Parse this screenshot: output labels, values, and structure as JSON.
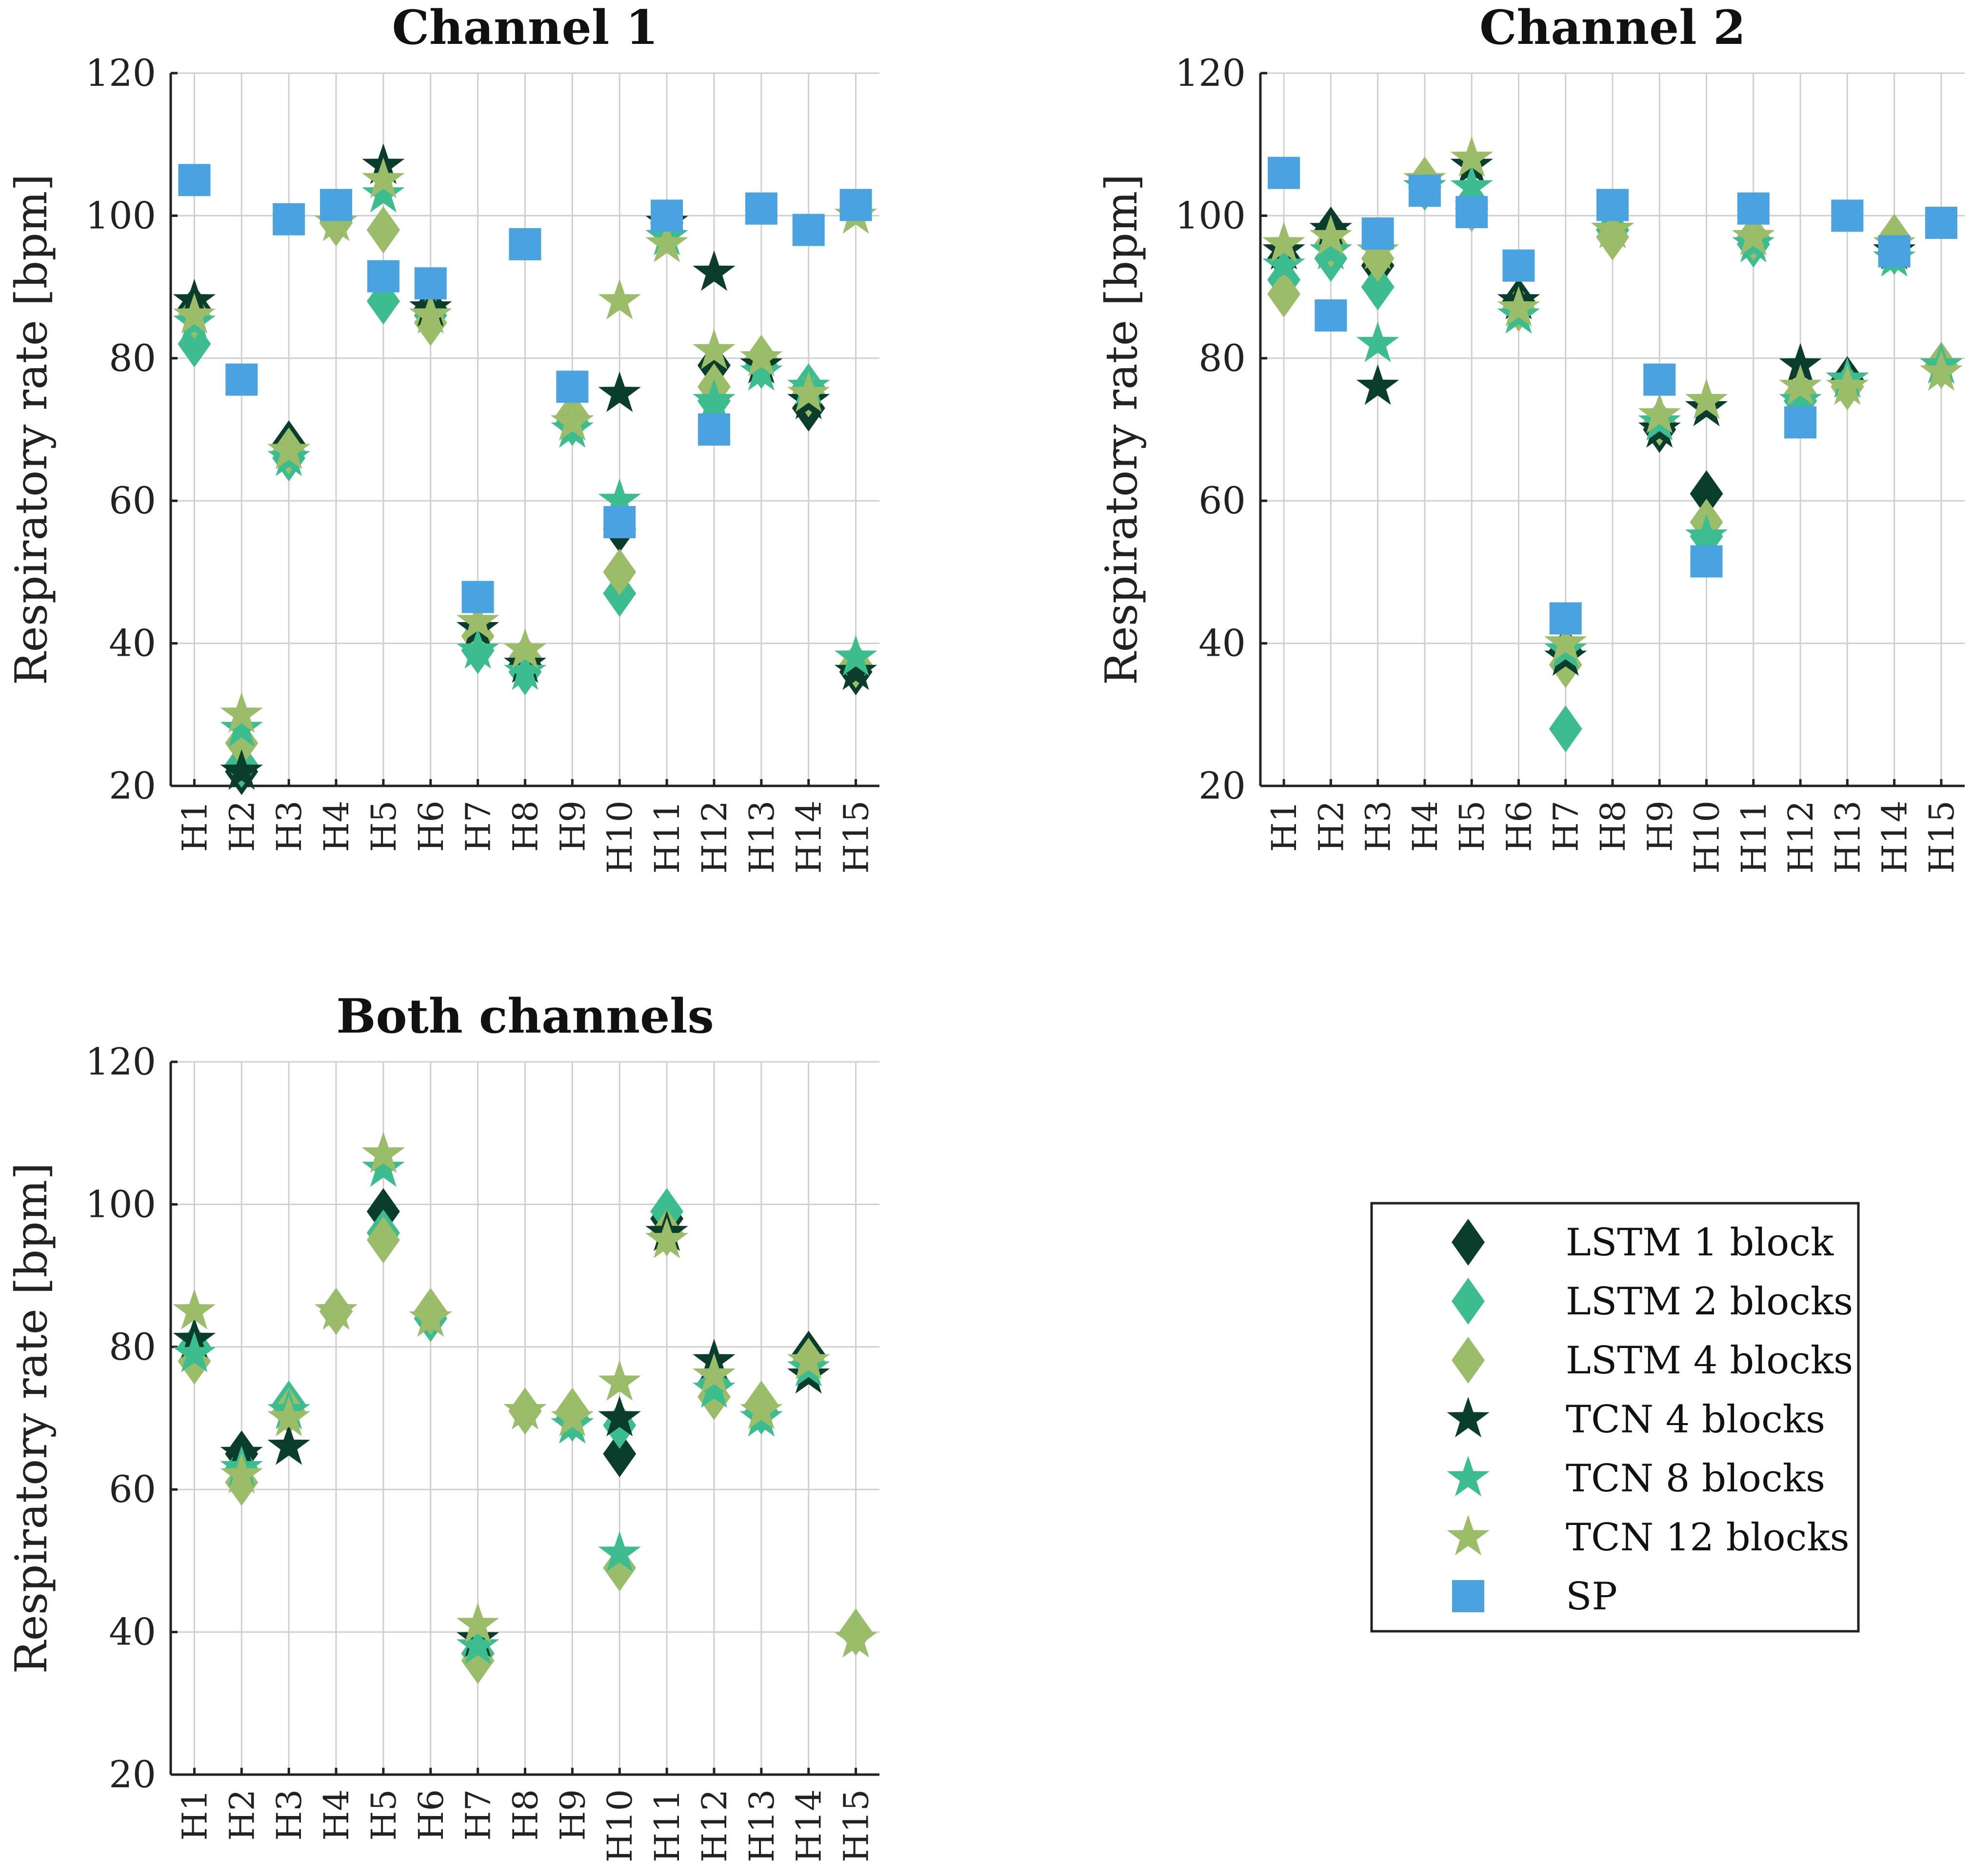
{
  "colors": {
    "lstm1": "#0b3d2c",
    "lstm2": "#3dbd8f",
    "lstm4": "#9bbd6a",
    "tcn4": "#0b3d2c",
    "tcn8": "#3dbd8f",
    "tcn12": "#9bbd6a",
    "sp": "#4aa3e0"
  },
  "legend": {
    "placement": "lower-right",
    "items": [
      {
        "label": "LSTM 1 block",
        "series": "lstm1",
        "marker": "diamond"
      },
      {
        "label": "LSTM 2 blocks",
        "series": "lstm2",
        "marker": "diamond"
      },
      {
        "label": "LSTM 4 blocks",
        "series": "lstm4",
        "marker": "diamond"
      },
      {
        "label": "TCN 4 blocks",
        "series": "tcn4",
        "marker": "star"
      },
      {
        "label": "TCN 8 blocks",
        "series": "tcn8",
        "marker": "star"
      },
      {
        "label": "TCN 12 blocks",
        "series": "tcn12",
        "marker": "star"
      },
      {
        "label": "SP",
        "series": "sp",
        "marker": "square"
      }
    ]
  },
  "chart_data": [
    {
      "type": "scatter",
      "title": "Channel 1",
      "ylabel": "Respiratory rate [bpm]",
      "ylim": [
        20,
        120
      ],
      "yticks": [
        20,
        40,
        60,
        80,
        100,
        120
      ],
      "grid": true,
      "categories": [
        "H1",
        "H2",
        "H3",
        "H4",
        "H5",
        "H6",
        "H7",
        "H8",
        "H9",
        "H10",
        "H11",
        "H12",
        "H13",
        "H14",
        "H15"
      ],
      "series": [
        {
          "key": "lstm1",
          "name": "LSTM 1 block",
          "marker": "diamond",
          "values": [
            87,
            22,
            68,
            99,
            98,
            87,
            39,
            37,
            71,
            56,
            99,
            79,
            79,
            73,
            36
          ]
        },
        {
          "key": "lstm2",
          "name": "LSTM 2 blocks",
          "marker": "diamond",
          "values": [
            82,
            23,
            66,
            99,
            88,
            86,
            39,
            36,
            71,
            47,
            98,
            74,
            79,
            76,
            37
          ]
        },
        {
          "key": "lstm4",
          "name": "LSTM 4 blocks",
          "marker": "diamond",
          "values": [
            86,
            26,
            67,
            99,
            98,
            85,
            41,
            38,
            72,
            50,
            98,
            76,
            80,
            75,
            37
          ]
        },
        {
          "key": "tcn4",
          "name": "TCN 4 blocks",
          "marker": "star",
          "values": [
            88,
            22,
            67,
            99,
            107,
            87,
            42,
            37,
            71,
            75,
            99,
            92,
            79,
            74,
            36
          ]
        },
        {
          "key": "tcn8",
          "name": "TCN 8 blocks",
          "marker": "star",
          "values": [
            85,
            28,
            66,
            99,
            103,
            86,
            39,
            36,
            70,
            60,
            97,
            74,
            78,
            76,
            38
          ]
        },
        {
          "key": "tcn12",
          "name": "TCN 12 blocks",
          "marker": "star",
          "values": [
            86,
            30,
            67,
            99,
            105,
            86,
            43,
            39,
            71,
            88,
            96,
            81,
            80,
            75,
            100
          ]
        },
        {
          "key": "sp",
          "name": "SP",
          "marker": "square",
          "values": [
            105,
            77,
            99.5,
            101.5,
            91.5,
            90.5,
            46.5,
            96,
            76,
            57,
            100,
            70,
            101,
            98,
            101.5
          ]
        }
      ]
    },
    {
      "type": "scatter",
      "title": "Channel 2",
      "ylabel": "Respiratory rate [bpm]",
      "ylim": [
        20,
        120
      ],
      "yticks": [
        20,
        40,
        60,
        80,
        100,
        120
      ],
      "grid": true,
      "categories": [
        "H1",
        "H2",
        "H3",
        "H4",
        "H5",
        "H6",
        "H7",
        "H8",
        "H9",
        "H10",
        "H11",
        "H12",
        "H13",
        "H14",
        "H15"
      ],
      "series": [
        {
          "key": "lstm1",
          "name": "LSTM 1 block",
          "marker": "diamond",
          "values": [
            94,
            98,
            93,
            104,
            101,
            88,
            39,
            98,
            70,
            61,
            97,
            74,
            77,
            95,
            79
          ]
        },
        {
          "key": "lstm2",
          "name": "LSTM 2 blocks",
          "marker": "diamond",
          "values": [
            91,
            94,
            90,
            104,
            102,
            87,
            28,
            98,
            71,
            55,
            96,
            74,
            76,
            95,
            79
          ]
        },
        {
          "key": "lstm4",
          "name": "LSTM 4 blocks",
          "marker": "diamond",
          "values": [
            89,
            96,
            94,
            105,
            101,
            87,
            37,
            97,
            71,
            57,
            97,
            75,
            76,
            97,
            79
          ]
        },
        {
          "key": "tcn4",
          "name": "TCN 4 blocks",
          "marker": "star",
          "values": [
            95,
            98,
            76,
            104,
            107,
            88,
            38,
            98,
            70,
            73,
            97,
            79,
            77,
            95,
            79
          ]
        },
        {
          "key": "tcn8",
          "name": "TCN 8 blocks",
          "marker": "star",
          "values": [
            93,
            95,
            82,
            104,
            104,
            86,
            39,
            98,
            71,
            55,
            96,
            74,
            77,
            94,
            79
          ]
        },
        {
          "key": "tcn12",
          "name": "TCN 12 blocks",
          "marker": "star",
          "values": [
            96,
            97,
            95,
            105,
            108,
            87,
            40,
            98,
            72,
            74,
            97,
            76,
            76,
            96,
            78
          ]
        },
        {
          "key": "sp",
          "name": "SP",
          "marker": "square",
          "values": [
            106,
            86,
            97.5,
            103.5,
            100.5,
            93,
            43.5,
            101.5,
            77,
            51.5,
            101,
            71,
            100,
            95,
            99
          ]
        }
      ]
    },
    {
      "type": "scatter",
      "title": "Both channels",
      "ylabel": "Respiratory rate [bpm]",
      "ylim": [
        20,
        120
      ],
      "yticks": [
        20,
        40,
        60,
        80,
        100,
        120
      ],
      "grid": true,
      "categories": [
        "H1",
        "H2",
        "H3",
        "H4",
        "H5",
        "H6",
        "H7",
        "H8",
        "H9",
        "H10",
        "H11",
        "H12",
        "H13",
        "H14",
        "H15"
      ],
      "series": [
        {
          "key": "lstm1",
          "name": "LSTM 1 block",
          "marker": "diamond",
          "values": [
            80,
            65,
            71,
            85,
            99,
            84,
            37,
            71,
            70,
            65,
            98,
            75,
            71,
            79,
            40
          ]
        },
        {
          "key": "lstm2",
          "name": "LSTM 2 blocks",
          "marker": "diamond",
          "values": [
            80,
            63,
            72,
            85,
            96,
            84,
            37,
            71,
            70,
            69,
            99,
            75,
            71,
            78,
            40
          ]
        },
        {
          "key": "lstm4",
          "name": "LSTM 4 blocks",
          "marker": "diamond",
          "values": [
            78,
            61,
            71,
            85,
            95,
            85,
            36,
            71,
            71,
            49,
            96,
            73,
            72,
            78,
            40
          ]
        },
        {
          "key": "tcn4",
          "name": "TCN 4 blocks",
          "marker": "star",
          "values": [
            81,
            65,
            66,
            85,
            107,
            84,
            39,
            71,
            69,
            70,
            96,
            78,
            70,
            76,
            39
          ]
        },
        {
          "key": "tcn8",
          "name": "TCN 8 blocks",
          "marker": "star",
          "values": [
            79,
            63,
            71,
            85,
            105,
            84,
            38,
            71,
            69,
            51,
            95,
            74,
            70,
            77,
            39
          ]
        },
        {
          "key": "tcn12",
          "name": "TCN 12 blocks",
          "marker": "star",
          "values": [
            85,
            62,
            70,
            85,
            107,
            84,
            41,
            71,
            70,
            75,
            95,
            76,
            71,
            78,
            39
          ]
        }
      ]
    }
  ]
}
